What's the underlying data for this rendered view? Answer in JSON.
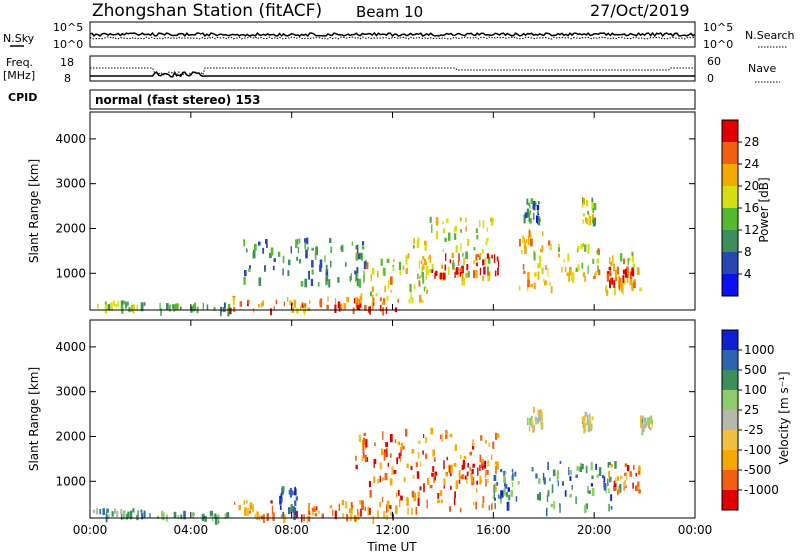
{
  "header": {
    "station": "Zhongshan Station (fitACF)",
    "beam": "Beam 10",
    "date": "27/Oct/2019"
  },
  "labels": {
    "nsky": "N.Sky",
    "nsearch": "N.Search",
    "freq_line1": "Freq.",
    "freq_line2": "[MHz]",
    "nave": "Nave",
    "cpid": "CPID",
    "cpid_value": "normal (fast stereo) 153",
    "xlabel": "Time UT",
    "ylabel": "Slant Range [km]"
  },
  "noise_ticks": {
    "left": [
      "10^5",
      "10^0"
    ],
    "right": [
      "10^5",
      "10^0"
    ]
  },
  "freq_ticks": {
    "left": [
      "18",
      "8"
    ],
    "right": [
      "60",
      "0"
    ]
  },
  "colors": {
    "power_scale": [
      "#0a10f0",
      "#2848b0",
      "#3c8f5a",
      "#54b830",
      "#d6e010",
      "#f5a800",
      "#f06010",
      "#e00000"
    ],
    "velocity_scale": [
      "#e00000",
      "#f06010",
      "#f5a800",
      "#f0c040",
      "#b8b8a8",
      "#8ccc6a",
      "#3c8f5a",
      "#2c66b0",
      "#1020d0"
    ]
  },
  "chart_data": [
    {
      "type": "heatmap",
      "name": "power",
      "xlabel": "Time UT",
      "ylabel": "Slant Range [km]",
      "xlim": [
        0,
        24
      ],
      "ylim": [
        180,
        4600
      ],
      "x_ticks": [
        "00:00",
        "04:00",
        "08:00",
        "12:00",
        "16:00",
        "20:00",
        "00:00"
      ],
      "y_ticks": [
        "1000",
        "2000",
        "3000",
        "4000"
      ],
      "colorbar": {
        "label": "Power [dB]",
        "ticks": [
          "4",
          "8",
          "12",
          "16",
          "20",
          "24",
          "28"
        ],
        "range": [
          0,
          32
        ]
      },
      "regions": [
        {
          "t": [
            0.0,
            2.5
          ],
          "r": [
            250,
            400
          ],
          "level": 0.45
        },
        {
          "t": [
            2.5,
            5.5
          ],
          "r": [
            200,
            350
          ],
          "level": 0.4
        },
        {
          "t": [
            5.5,
            9.2
          ],
          "r": [
            200,
            500
          ],
          "level": 0.75
        },
        {
          "t": [
            9.3,
            12.2
          ],
          "r": [
            200,
            500
          ],
          "level": 0.85
        },
        {
          "t": [
            10.5,
            13.5
          ],
          "r": [
            400,
            1500
          ],
          "level": 0.6
        },
        {
          "t": [
            12.8,
            16.0
          ],
          "r": [
            900,
            2300
          ],
          "level": 0.55
        },
        {
          "t": [
            13.5,
            16.2
          ],
          "r": [
            1000,
            1500
          ],
          "level": 0.9
        },
        {
          "t": [
            17.0,
            18.3
          ],
          "r": [
            700,
            2000
          ],
          "level": 0.65
        },
        {
          "t": [
            18.5,
            20.2
          ],
          "r": [
            900,
            1700
          ],
          "level": 0.6
        },
        {
          "t": [
            20.0,
            21.8
          ],
          "r": [
            600,
            1500
          ],
          "level": 0.65
        },
        {
          "t": [
            20.5,
            21.5
          ],
          "r": [
            800,
            1200
          ],
          "level": 0.9
        },
        {
          "t": [
            17.2,
            17.8
          ],
          "r": [
            2200,
            2700
          ],
          "level": 0.25
        },
        {
          "t": [
            19.5,
            20.0
          ],
          "r": [
            2200,
            2700
          ],
          "level": 0.5
        },
        {
          "t": [
            6.0,
            11.0
          ],
          "r": [
            800,
            1800
          ],
          "level": 0.3
        }
      ]
    },
    {
      "type": "heatmap",
      "name": "velocity",
      "xlabel": "Time UT",
      "ylabel": "Slant Range [km]",
      "xlim": [
        0,
        24
      ],
      "ylim": [
        180,
        4600
      ],
      "x_ticks": [
        "00:00",
        "04:00",
        "08:00",
        "12:00",
        "16:00",
        "20:00",
        "00:00"
      ],
      "y_ticks": [
        "1000",
        "2000",
        "3000",
        "4000"
      ],
      "colorbar": {
        "label": "Velocity [m s⁻¹]",
        "ticks": [
          "-1000",
          "-500",
          "-100",
          "-25",
          "25",
          "100",
          "500",
          "1000"
        ],
        "range": [
          -1500,
          1500
        ]
      },
      "regions": [
        {
          "t": [
            0.0,
            2.5
          ],
          "r": [
            250,
            400
          ],
          "level": 0.7
        },
        {
          "t": [
            2.5,
            5.5
          ],
          "r": [
            200,
            350
          ],
          "level": 0.72
        },
        {
          "t": [
            5.5,
            9.2
          ],
          "r": [
            200,
            600
          ],
          "level": 0.25
        },
        {
          "t": [
            9.5,
            12.0
          ],
          "r": [
            200,
            600
          ],
          "level": 0.25
        },
        {
          "t": [
            10.5,
            16.2
          ],
          "r": [
            400,
            2200
          ],
          "level": 0.2
        },
        {
          "t": [
            13.5,
            15.8
          ],
          "r": [
            1000,
            1500
          ],
          "level": 0.15
        },
        {
          "t": [
            16.0,
            17.0
          ],
          "r": [
            500,
            1400
          ],
          "level": 0.75
        },
        {
          "t": [
            17.5,
            21.0
          ],
          "r": [
            400,
            1500
          ],
          "level": 0.75
        },
        {
          "t": [
            20.5,
            21.8
          ],
          "r": [
            800,
            1400
          ],
          "level": 0.25
        },
        {
          "t": [
            17.3,
            17.9
          ],
          "r": [
            2100,
            2700
          ],
          "level": 0.5
        },
        {
          "t": [
            19.5,
            19.9
          ],
          "r": [
            2200,
            2600
          ],
          "level": 0.5
        },
        {
          "t": [
            21.8,
            22.3
          ],
          "r": [
            2200,
            2500
          ],
          "level": 0.5
        },
        {
          "t": [
            7.5,
            8.2
          ],
          "r": [
            300,
            900
          ],
          "level": 0.9
        }
      ]
    }
  ]
}
